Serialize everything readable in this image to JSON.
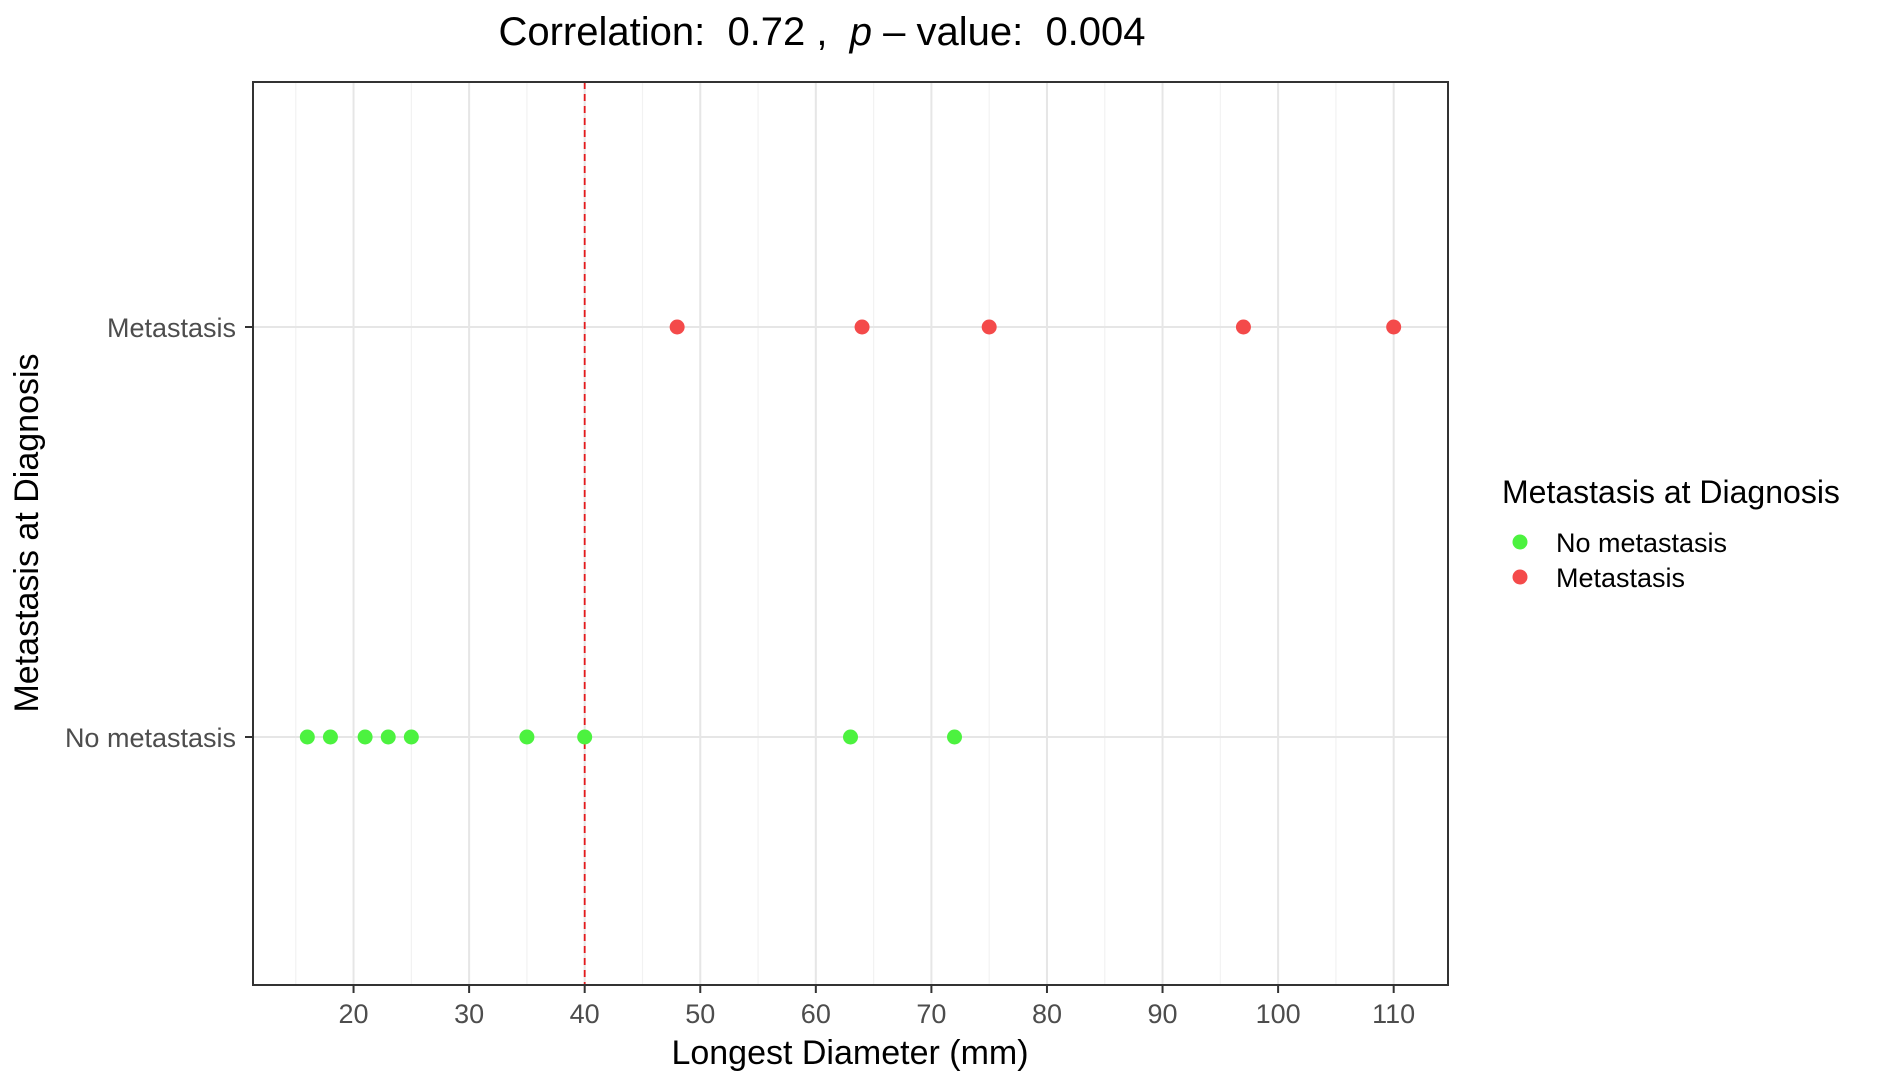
{
  "chart_data": {
    "type": "scatter",
    "title": {
      "prefix": "Correlation:  0.72 ,  ",
      "italic": "p",
      "suffix": " – value:  0.004"
    },
    "xlabel": "Longest Diameter (mm)",
    "ylabel": "Metastasis at Diagnosis",
    "xlim": [
      11.3,
      114.7
    ],
    "x_ticks": [
      20,
      30,
      40,
      50,
      60,
      70,
      80,
      90,
      100,
      110
    ],
    "x_tick_labels": [
      "20",
      "30",
      "40",
      "50",
      "60",
      "70",
      "80",
      "90",
      "100",
      "110"
    ],
    "categories": [
      "No metastasis",
      "Metastasis"
    ],
    "grid": true,
    "reference_line": {
      "x": 40,
      "style": "dashed",
      "color": "#e41a1c"
    },
    "series": [
      {
        "name": "No metastasis",
        "category": "No metastasis",
        "color": "#4cf23f",
        "x": [
          16,
          18,
          21,
          23,
          25,
          35,
          40,
          63,
          72
        ]
      },
      {
        "name": "Metastasis",
        "category": "Metastasis",
        "color": "#f44a4a",
        "x": [
          48,
          64,
          75,
          97,
          110
        ]
      }
    ],
    "legend": {
      "title": "Metastasis at Diagnosis",
      "position": "right",
      "entries": [
        "No metastasis",
        "Metastasis"
      ]
    }
  }
}
